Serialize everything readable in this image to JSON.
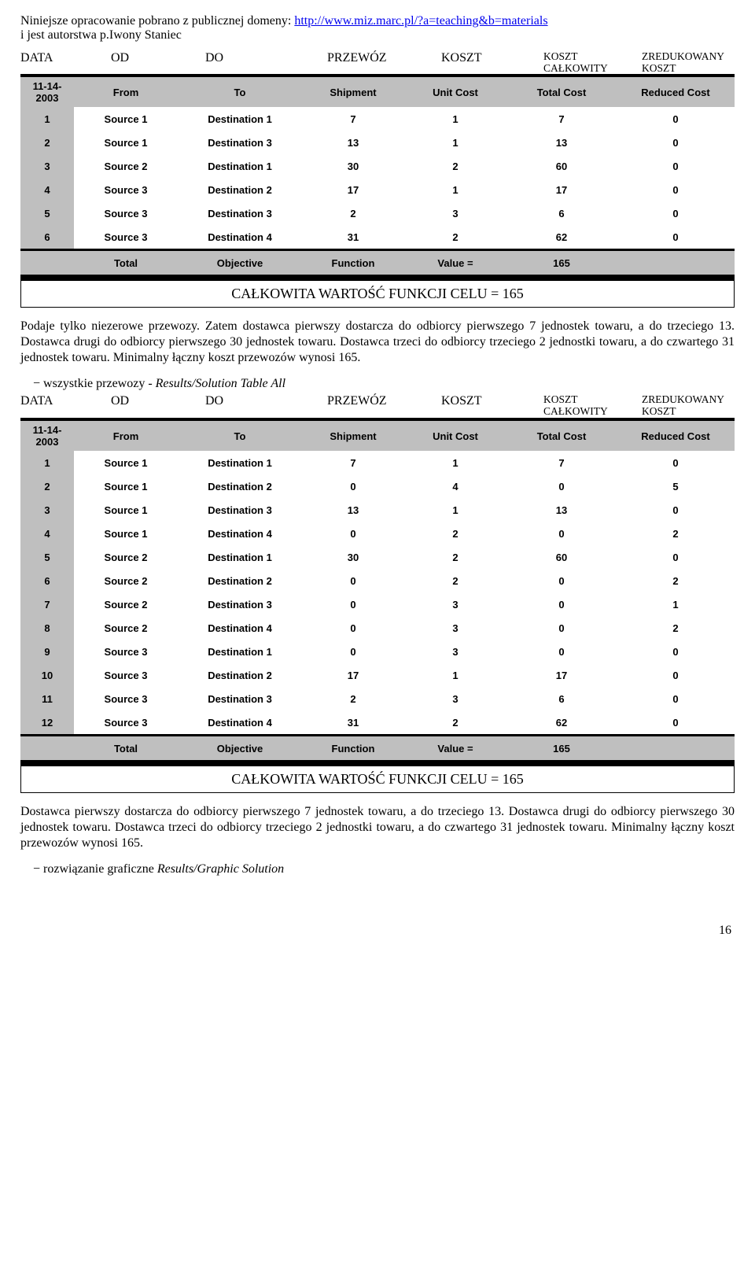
{
  "intro": {
    "line1_pre": "Niniejsze opracowanie pobrano z publicznej domeny: ",
    "link": "http://www.miz.marc.pl/?a=teaching&b=materials",
    "line2": "i jest autorstwa p.Iwony Staniec"
  },
  "header": {
    "data": "DATA",
    "od": "OD",
    "do": "DO",
    "przewoz": "PRZEWÓZ",
    "koszt": "KOSZT",
    "koszt_calk_top": "KOSZT",
    "koszt_calk_bot": "CAŁKOWITY",
    "zred_top": "ZREDUKOWANY",
    "zred_bot": "KOSZT"
  },
  "table_cols": {
    "date": "11-14-2003",
    "from": "From",
    "to": "To",
    "ship": "Shipment",
    "uc": "Unit Cost",
    "tc": "Total Cost",
    "rc": "Reduced Cost"
  },
  "table1_rows": [
    {
      "i": "1",
      "from": "Source 1",
      "to": "Destination 1",
      "ship": "7",
      "uc": "1",
      "tc": "7",
      "rc": "0"
    },
    {
      "i": "2",
      "from": "Source 1",
      "to": "Destination 3",
      "ship": "13",
      "uc": "1",
      "tc": "13",
      "rc": "0"
    },
    {
      "i": "3",
      "from": "Source 2",
      "to": "Destination 1",
      "ship": "30",
      "uc": "2",
      "tc": "60",
      "rc": "0"
    },
    {
      "i": "4",
      "from": "Source 3",
      "to": "Destination 2",
      "ship": "17",
      "uc": "1",
      "tc": "17",
      "rc": "0"
    },
    {
      "i": "5",
      "from": "Source 3",
      "to": "Destination 3",
      "ship": "2",
      "uc": "3",
      "tc": "6",
      "rc": "0"
    },
    {
      "i": "6",
      "from": "Source 3",
      "to": "Destination 4",
      "ship": "31",
      "uc": "2",
      "tc": "62",
      "rc": "0"
    }
  ],
  "total_row": {
    "a": "Total",
    "b": "Objective",
    "c": "Function",
    "d": "Value =",
    "e": "165",
    "f": ""
  },
  "caption": "CAŁKOWITA WARTOŚĆ FUNKCJI CELU = 165",
  "para1": "Podaje tylko niezerowe przewozy. Zatem dostawca pierwszy dostarcza do odbiorcy pierwszego 7 jednostek towaru, a do trzeciego 13. Dostawca drugi do odbiorcy pierwszego 30 jednostek towaru. Dostawca trzeci do odbiorcy trzeciego 2 jednostki towaru, a do czwartego 31 jednostek towaru. Minimalny łączny koszt przewozów wynosi 165.",
  "bullet1_pre": "wszystkie przewozy - ",
  "bullet1_it": "Results/Solution Table All",
  "table2_rows": [
    {
      "i": "1",
      "from": "Source 1",
      "to": "Destination 1",
      "ship": "7",
      "uc": "1",
      "tc": "7",
      "rc": "0"
    },
    {
      "i": "2",
      "from": "Source 1",
      "to": "Destination 2",
      "ship": "0",
      "uc": "4",
      "tc": "0",
      "rc": "5"
    },
    {
      "i": "3",
      "from": "Source 1",
      "to": "Destination 3",
      "ship": "13",
      "uc": "1",
      "tc": "13",
      "rc": "0"
    },
    {
      "i": "4",
      "from": "Source 1",
      "to": "Destination 4",
      "ship": "0",
      "uc": "2",
      "tc": "0",
      "rc": "2"
    },
    {
      "i": "5",
      "from": "Source 2",
      "to": "Destination 1",
      "ship": "30",
      "uc": "2",
      "tc": "60",
      "rc": "0"
    },
    {
      "i": "6",
      "from": "Source 2",
      "to": "Destination 2",
      "ship": "0",
      "uc": "2",
      "tc": "0",
      "rc": "2"
    },
    {
      "i": "7",
      "from": "Source 2",
      "to": "Destination 3",
      "ship": "0",
      "uc": "3",
      "tc": "0",
      "rc": "1"
    },
    {
      "i": "8",
      "from": "Source 2",
      "to": "Destination 4",
      "ship": "0",
      "uc": "3",
      "tc": "0",
      "rc": "2"
    },
    {
      "i": "9",
      "from": "Source 3",
      "to": "Destination 1",
      "ship": "0",
      "uc": "3",
      "tc": "0",
      "rc": "0"
    },
    {
      "i": "10",
      "from": "Source 3",
      "to": "Destination 2",
      "ship": "17",
      "uc": "1",
      "tc": "17",
      "rc": "0"
    },
    {
      "i": "11",
      "from": "Source 3",
      "to": "Destination 3",
      "ship": "2",
      "uc": "3",
      "tc": "6",
      "rc": "0"
    },
    {
      "i": "12",
      "from": "Source 3",
      "to": "Destination 4",
      "ship": "31",
      "uc": "2",
      "tc": "62",
      "rc": "0"
    }
  ],
  "para2": "Dostawca pierwszy dostarcza do odbiorcy pierwszego 7 jednostek towaru, a do trzeciego 13. Dostawca drugi do odbiorcy pierwszego 30 jednostek towaru. Dostawca trzeci do odbiorcy trzeciego 2 jednostki towaru, a do czwartego 31 jednostek towaru. Minimalny łączny koszt przewozów wynosi 165.",
  "bullet2_pre": "rozwiązanie graficzne ",
  "bullet2_it": "Results/Graphic Solution",
  "page": "16"
}
